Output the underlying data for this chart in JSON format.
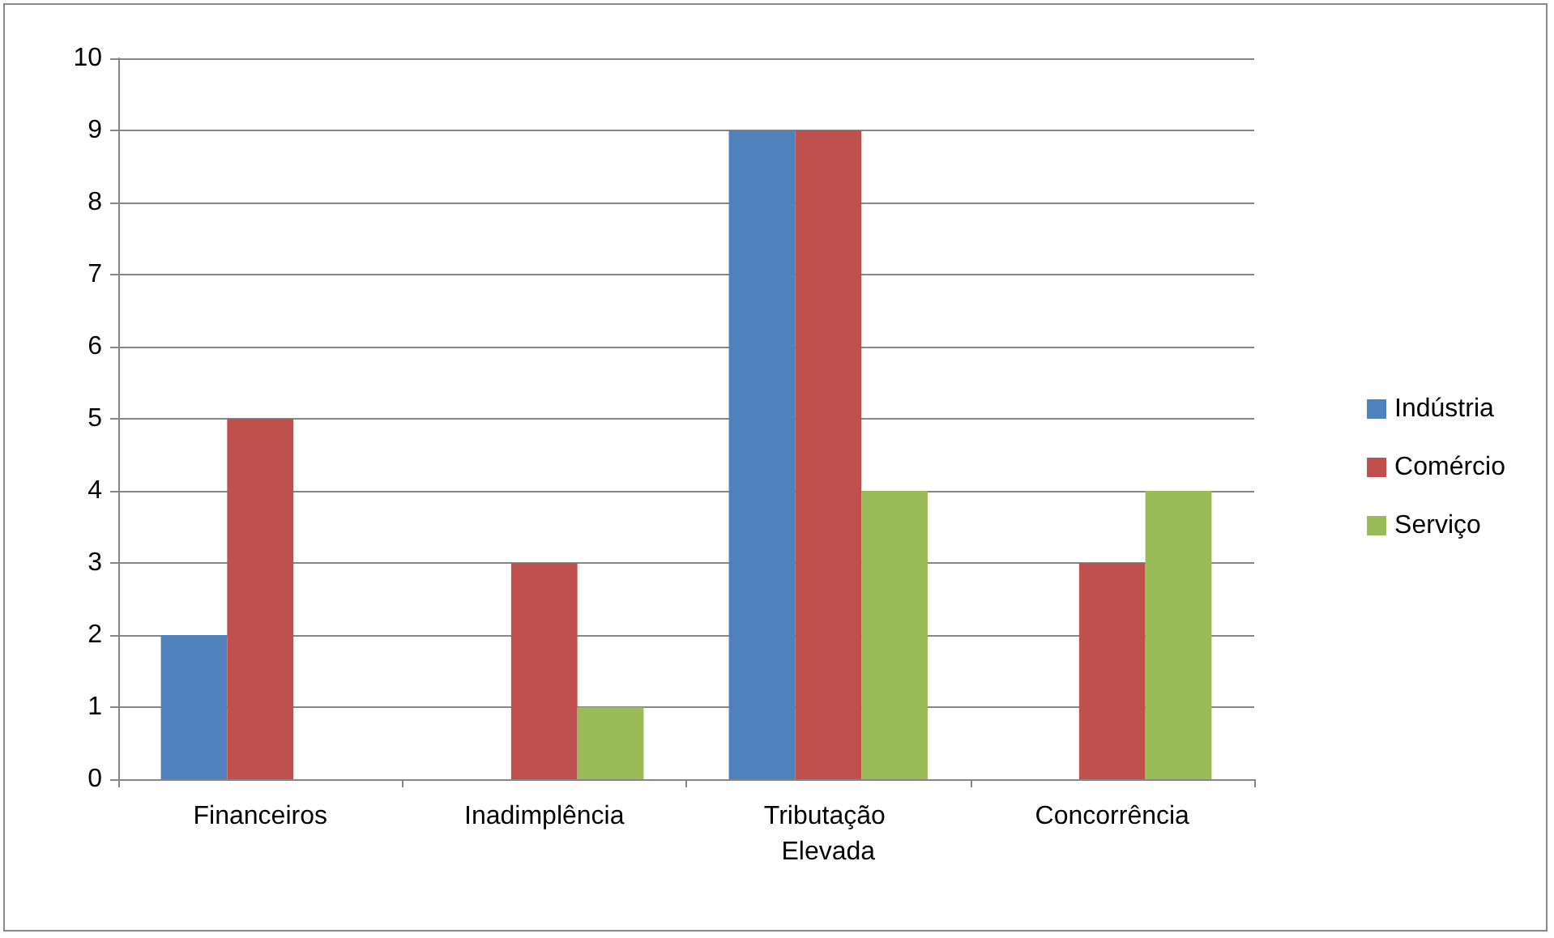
{
  "chart_data": {
    "type": "bar",
    "categories": [
      "Financeiros",
      "Inadimplência",
      "Tributação Elevada",
      "Concorrência"
    ],
    "series": [
      {
        "name": "Indústria",
        "color": "#4f81bd",
        "values": [
          2,
          0,
          9,
          0
        ]
      },
      {
        "name": "Comércio",
        "color": "#c0504d",
        "values": [
          5,
          3,
          9,
          3
        ]
      },
      {
        "name": "Serviço",
        "color": "#9bbb59",
        "values": [
          0,
          1,
          4,
          4
        ]
      }
    ],
    "ylim": [
      0,
      10
    ],
    "yticks": [
      0,
      1,
      2,
      3,
      4,
      5,
      6,
      7,
      8,
      9,
      10
    ],
    "grid": "y",
    "legend": "right"
  }
}
